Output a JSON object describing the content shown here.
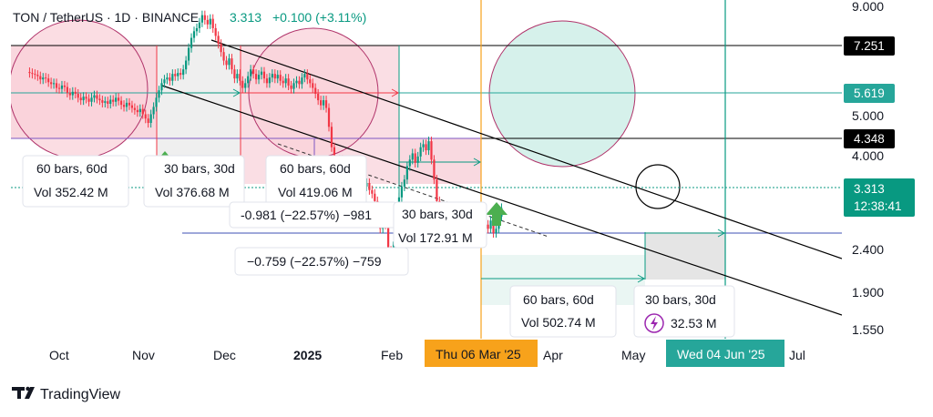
{
  "header": {
    "symbol": "TON / TetherUS · 1D · BINANCE",
    "last": "3.313",
    "change": "+0.100 (+3.11%)"
  },
  "price_tags": [
    {
      "label": "7.251",
      "price": 7.251,
      "color": "#000000"
    },
    {
      "label": "5.619",
      "price": 5.619,
      "color": "#26a69a"
    },
    {
      "label": "4.348",
      "price": 4.348,
      "color": "#000000"
    },
    {
      "label": "3.313",
      "price": 3.313,
      "color": "#089981"
    }
  ],
  "countdown": "12:38:41",
  "date_tags": {
    "left": "Thu 06 Mar '25",
    "right": "Wed 04 Jun '25"
  },
  "measure_boxes": [
    {
      "line1": "60 bars, 60d",
      "line2": "Vol 352.42 M"
    },
    {
      "line1": "30 bars, 30d",
      "line2": "Vol 376.68 M"
    },
    {
      "line1": "60 bars, 60d",
      "line2": "Vol 419.06 M"
    },
    {
      "line1": "-0.981 (−22.57%) −981"
    },
    {
      "line1": "30 bars, 30d",
      "line2": "Vol 172.91 M"
    },
    {
      "line1": "−0.759 (−22.57%) −759"
    },
    {
      "line1": "60 bars, 60d",
      "line2": "Vol 502.74 M"
    },
    {
      "line1": "30 bars, 30d",
      "line2": "32.53 M"
    }
  ],
  "colors": {
    "up": "#089981",
    "down": "#f23645",
    "pink": "#f8d0d8",
    "teal": "#d2efe9",
    "orange": "#f7a21b"
  },
  "branding": "TradingView",
  "chart_data": {
    "type": "candlestick",
    "title": "TON / TetherUS · 1D · BINANCE",
    "y_scale": "log",
    "y_ticks": [
      "9.000",
      "5.000",
      "4.000",
      "2.400",
      "1.900",
      "1.550"
    ],
    "x_ticks": [
      "Oct",
      "Nov",
      "Dec",
      "2025",
      "Feb",
      "Apr",
      "May",
      "Jul"
    ],
    "grid": false,
    "series": [
      {
        "x_start": "2024-09-20",
        "close": [
          5.62,
          5.6,
          5.58,
          5.55,
          5.48,
          5.52,
          5.5,
          5.42,
          5.38,
          5.4,
          5.3,
          5.28,
          5.35,
          5.32,
          5.2,
          5.15,
          5.22,
          5.18,
          5.1,
          5.05,
          5.12,
          5.08,
          5.02,
          5.1,
          5.15,
          5.08,
          5.05,
          5.0,
          5.03,
          4.98,
          5.06,
          5.02,
          5.1,
          5.04,
          4.96,
          4.92,
          5.0,
          4.95,
          4.9,
          4.86,
          4.82,
          4.88,
          4.78,
          4.7,
          4.62,
          4.78,
          4.92,
          5.1,
          5.25,
          5.4,
          5.48,
          5.52,
          5.45,
          5.6,
          5.55,
          5.62,
          5.58,
          5.7,
          5.9,
          6.2,
          6.45,
          6.62,
          6.7,
          6.85,
          7.05,
          6.92,
          6.8,
          6.95,
          6.7,
          6.5,
          6.3,
          6.1,
          5.9,
          5.8,
          5.95,
          5.7,
          5.5,
          5.6,
          5.45,
          5.3,
          5.4,
          5.55,
          5.7,
          5.6,
          5.48,
          5.58,
          5.65,
          5.5,
          5.4,
          5.52,
          5.6,
          5.5,
          5.58,
          5.45,
          5.4,
          5.5,
          5.35,
          5.28,
          5.4,
          5.45,
          5.38,
          5.52,
          5.6,
          5.48,
          5.4,
          5.3,
          5.18,
          5.05,
          4.95,
          5.05,
          4.9,
          4.55,
          4.2,
          3.95,
          3.9,
          4.0,
          3.85,
          3.8,
          3.75,
          3.82,
          3.7,
          3.78,
          3.65,
          3.7,
          3.6,
          3.65,
          3.55,
          3.5,
          3.4,
          3.2,
          3.05,
          3.25,
          3.1,
          2.8,
          2.65,
          2.9,
          3.3,
          3.45,
          3.6,
          3.7,
          3.9,
          4.0,
          4.1,
          3.95,
          4.05,
          4.2,
          4.25,
          4.15,
          4.3,
          4.0,
          3.7,
          3.4,
          3.15,
          3.05,
          2.95,
          2.9,
          3.0,
          2.92,
          2.88,
          2.95,
          3.05,
          3.0,
          3.1,
          3.15,
          3.2,
          3.12,
          3.25,
          3.3,
          3.22,
          3.1,
          3.05,
          3.15,
          3.0,
          3.05,
          3.2,
          3.31
        ]
      }
    ],
    "annotations": [
      "60 bars, 60d",
      "30 bars, 30d",
      "Vol 352.42 M",
      "Vol 376.68 M",
      "Vol 419.06 M",
      "Vol 172.91 M",
      "Vol 502.74 M",
      "32.53 M",
      "-0.981 (−22.57%) −981",
      "−0.759 (−22.57%) −759"
    ]
  }
}
